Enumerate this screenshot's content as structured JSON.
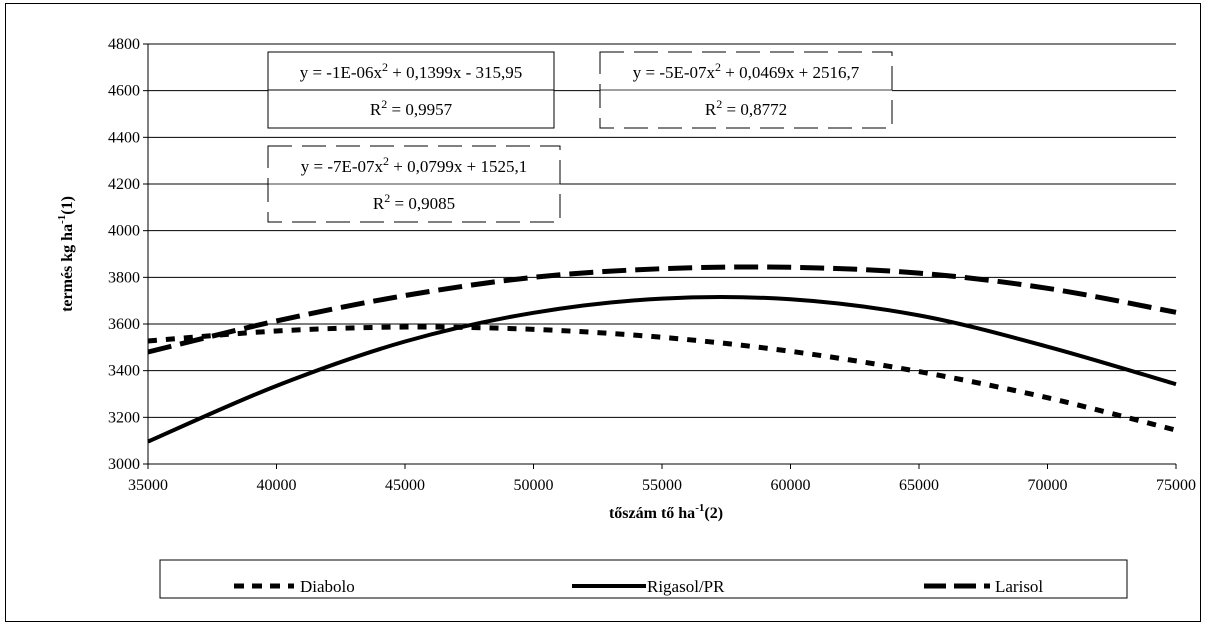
{
  "chart_data": {
    "type": "line",
    "xlabel": "tőszám tő ha",
    "xlabel_sup": "-1",
    "xlabel_suffix": "(2)",
    "ylabel": "termés kg ha",
    "ylabel_sup": "-1",
    "ylabel_suffix": "(1)",
    "xlim": [
      35000,
      75000
    ],
    "ylim": [
      3000,
      4800
    ],
    "x_ticks": [
      "35000",
      "40000",
      "45000",
      "50000",
      "55000",
      "60000",
      "65000",
      "70000",
      "75000"
    ],
    "y_ticks": [
      "3000",
      "3200",
      "3400",
      "3600",
      "3800",
      "4000",
      "4200",
      "4400",
      "4600",
      "4800"
    ],
    "grid": "horizontal",
    "legend_position": "bottom",
    "series": [
      {
        "name": "Diabolo",
        "style": "dotted-short-dash",
        "color": "#000000",
        "x": [
          35000,
          40000,
          45000,
          50000,
          55000,
          60000,
          65000,
          70000,
          75000
        ],
        "y": [
          3527,
          3570,
          3587,
          3577,
          3543,
          3483,
          3396,
          3284,
          3145
        ]
      },
      {
        "name": "Rigasol/PR",
        "style": "solid",
        "color": "#000000",
        "x": [
          35000,
          40000,
          45000,
          50000,
          55000,
          60000,
          65000,
          70000,
          75000
        ],
        "y": [
          3096,
          3335,
          3525,
          3648,
          3709,
          3706,
          3637,
          3503,
          3342
        ]
      },
      {
        "name": "Larisol",
        "style": "long-dash",
        "color": "#000000",
        "x": [
          35000,
          40000,
          45000,
          50000,
          55000,
          60000,
          65000,
          70000,
          75000
        ],
        "y": [
          3480,
          3613,
          3722,
          3800,
          3837,
          3843,
          3818,
          3753,
          3650
        ]
      }
    ],
    "annotations": [
      {
        "equation_pre": "y = -1E-06x",
        "equation_post": " + 0,1399x - 315,95",
        "r2_pre": "R",
        "r2_post": " = 0,9957",
        "box_style": "solid"
      },
      {
        "equation_pre": "y = -5E-07x",
        "equation_post": " + 0,0469x + 2516,7",
        "r2_pre": "R",
        "r2_post": " = 0,8772",
        "box_style": "long-dash"
      },
      {
        "equation_pre": "y = -7E-07x",
        "equation_post": " + 0,0799x + 1525,1",
        "r2_pre": "R",
        "r2_post": " = 0,9085",
        "box_style": "long-dash"
      }
    ],
    "superscript_two": "2"
  }
}
